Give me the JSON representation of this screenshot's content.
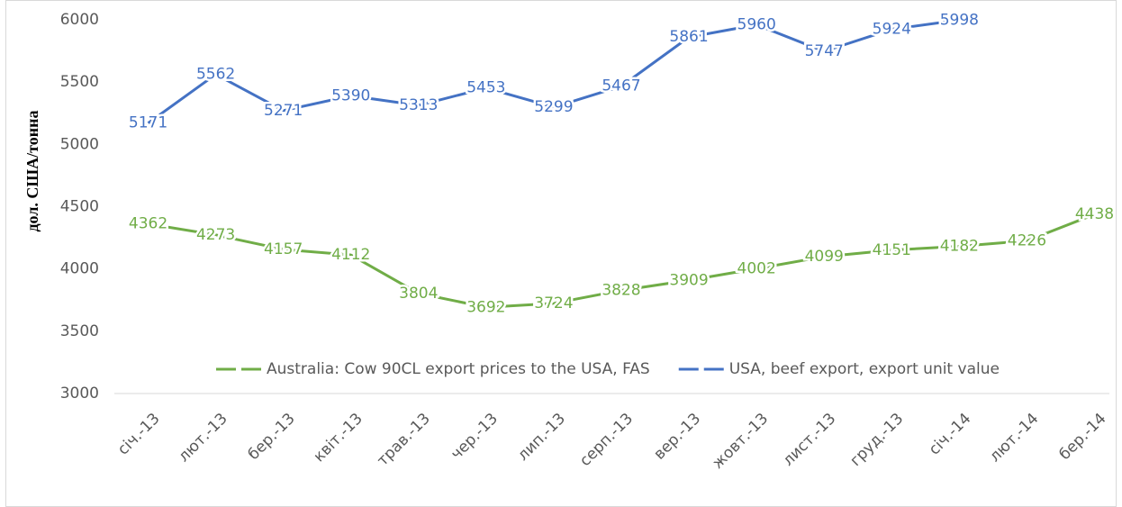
{
  "chart_data": {
    "type": "line",
    "y_label": "дол. США/тонна",
    "categories": [
      "січ.-13",
      "лют.-13",
      "бер.-13",
      "квіт.-13",
      "трав.-13",
      "чер.-13",
      "лип.-13",
      "серп.-13",
      "вер.-13",
      "жовт.-13",
      "лист.-13",
      "груд.-13",
      "січ.-14",
      "лют.-14",
      "бер.-14"
    ],
    "series": [
      {
        "name": "Australia: Cow 90CL export prices to the USA, FAS",
        "color": "#70ad47",
        "values": [
          4362,
          4273,
          4157,
          4112,
          3804,
          3692,
          3724,
          3828,
          3909,
          4002,
          4099,
          4151,
          4182,
          4226,
          4438
        ]
      },
      {
        "name": "USA, beef export, export unit value",
        "color": "#4472c4",
        "values": [
          5171,
          5562,
          5271,
          5390,
          5313,
          5453,
          5299,
          5467,
          5861,
          5960,
          5747,
          5924,
          5998,
          null,
          null
        ]
      }
    ],
    "ylim": [
      3000,
      6000
    ],
    "yticks": [
      3000,
      3500,
      4000,
      4500,
      5000,
      5500,
      6000
    ],
    "grid": false,
    "legend": "bottom"
  }
}
